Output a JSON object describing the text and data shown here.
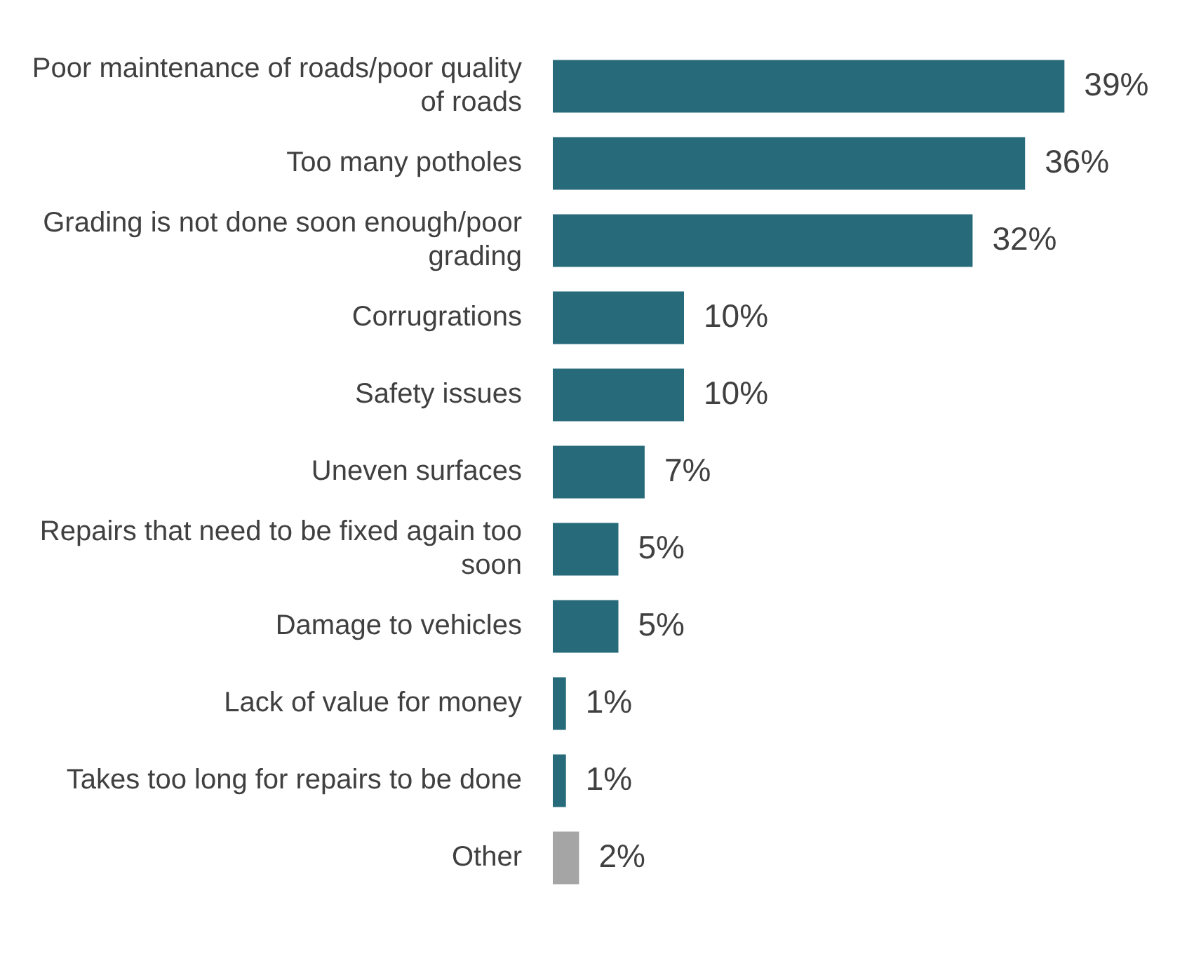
{
  "chart_data": {
    "type": "bar",
    "orientation": "horizontal",
    "categories": [
      "Poor maintenance of roads/poor quality of roads",
      "Too many potholes",
      "Grading is not done soon enough/poor grading",
      "Corrugrations",
      "Safety issues",
      "Uneven surfaces",
      "Repairs that need to be fixed again too soon",
      "Damage to vehicles",
      "Lack of value for money",
      "Takes too long for repairs to be done",
      "Other"
    ],
    "values": [
      39,
      36,
      32,
      10,
      10,
      7,
      5,
      5,
      1,
      1,
      2
    ],
    "value_labels": [
      "39%",
      "36%",
      "32%",
      "10%",
      "10%",
      "7%",
      "5%",
      "5%",
      "1%",
      "1%",
      "2%"
    ],
    "colors": [
      "#276a7a",
      "#276a7a",
      "#276a7a",
      "#276a7a",
      "#276a7a",
      "#276a7a",
      "#276a7a",
      "#276a7a",
      "#276a7a",
      "#276a7a",
      "#a5a5a5"
    ],
    "legend": false
  }
}
